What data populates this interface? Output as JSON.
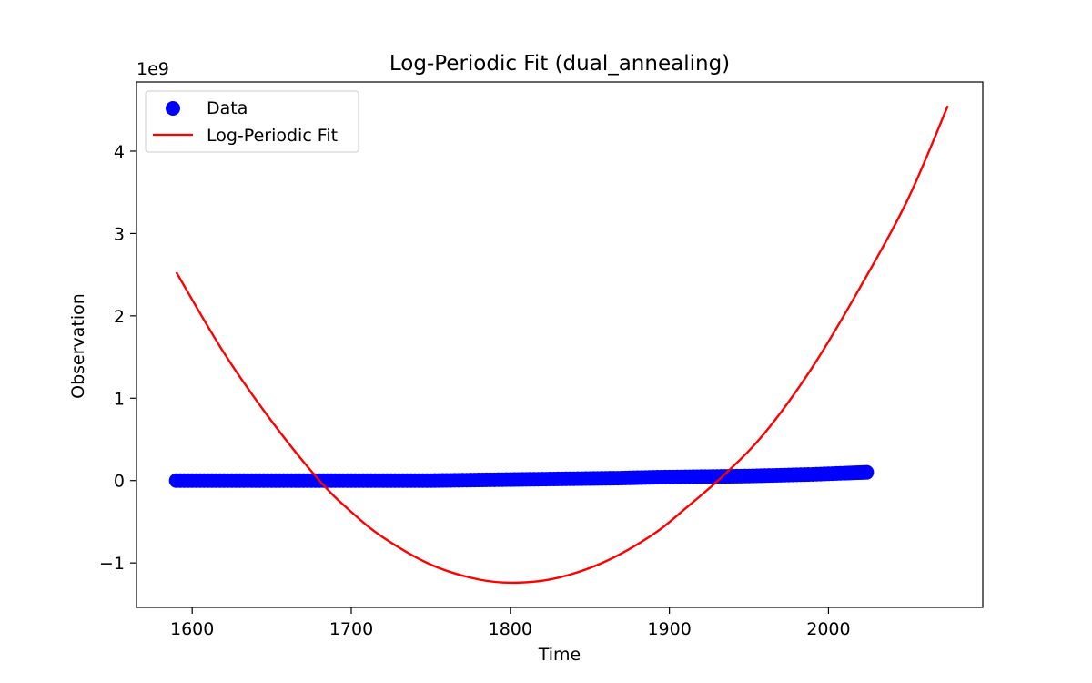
{
  "chart_data": {
    "type": "scatter",
    "title": "Log-Periodic Fit (dual_annealing)",
    "xlabel": "Time",
    "ylabel": "Observation",
    "y_offset_label": "1e9",
    "xlim": [
      1565,
      2097
    ],
    "ylim": [
      -1.54,
      4.84
    ],
    "y_scale_exponent": 9,
    "x_ticks": [
      1600,
      1700,
      1800,
      1900,
      2000
    ],
    "x_tick_labels": [
      "1600",
      "1700",
      "1800",
      "1900",
      "2000"
    ],
    "y_ticks": [
      -1,
      0,
      1,
      2,
      3,
      4
    ],
    "y_tick_labels": [
      "−1",
      "0",
      "1",
      "2",
      "3",
      "4"
    ],
    "grid": false,
    "legend": {
      "placement": "top-left"
    },
    "series": [
      {
        "name": "Data",
        "kind": "scatter",
        "color": "#0000ff",
        "x": [
          1590,
          1610,
          1630,
          1650,
          1670,
          1690,
          1710,
          1730,
          1750,
          1770,
          1790,
          1810,
          1830,
          1850,
          1870,
          1890,
          1910,
          1930,
          1950,
          1970,
          1990,
          2010,
          2024
        ],
        "y": [
          0.0,
          0.0,
          0.0,
          0.0,
          0.0,
          0.0,
          0.0,
          0.0,
          0.0,
          0.005,
          0.01,
          0.015,
          0.02,
          0.025,
          0.03,
          0.04,
          0.045,
          0.05,
          0.055,
          0.065,
          0.075,
          0.09,
          0.1
        ]
      },
      {
        "name": "Log-Periodic Fit",
        "kind": "line",
        "color": "#ff0000",
        "x": [
          1590,
          1620,
          1650,
          1680,
          1700,
          1720,
          1750,
          1780,
          1804,
          1830,
          1860,
          1890,
          1910,
          1935,
          1960,
          1990,
          2020,
          2050,
          2075
        ],
        "y": [
          2.53,
          1.55,
          0.72,
          0.0,
          -0.38,
          -0.69,
          -1.02,
          -1.2,
          -1.24,
          -1.18,
          -0.98,
          -0.65,
          -0.34,
          0.08,
          0.58,
          1.38,
          2.35,
          3.42,
          4.55
        ]
      }
    ]
  }
}
